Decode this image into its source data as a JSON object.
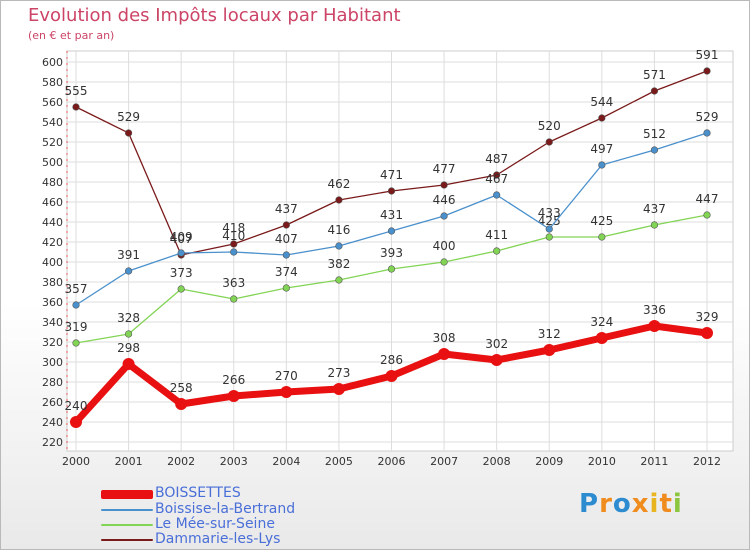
{
  "chart_data": {
    "type": "line",
    "title": "Evolution des Impôts locaux par Habitant",
    "subtitle": "(en € et par an)",
    "categories": [
      "2000",
      "2001",
      "2002",
      "2003",
      "2004",
      "2005",
      "2006",
      "2007",
      "2008",
      "2009",
      "2010",
      "2011",
      "2012"
    ],
    "ylim": [
      220,
      600
    ],
    "ytick_step": 20,
    "grid": true,
    "legend": "bottom-left",
    "series": [
      {
        "name": "BOISSETTES",
        "color": "#e81010",
        "values": [
          240,
          298,
          258,
          266,
          270,
          273,
          286,
          308,
          302,
          312,
          324,
          336,
          329
        ]
      },
      {
        "name": "Boissise-la-Bertrand",
        "color": "#4a90cc",
        "values": [
          357,
          391,
          409,
          410,
          407,
          416,
          431,
          446,
          467,
          433,
          497,
          512,
          529
        ]
      },
      {
        "name": "Le Mée-sur-Seine",
        "color": "#82d454",
        "values": [
          319,
          328,
          373,
          363,
          374,
          382,
          393,
          400,
          411,
          425,
          425,
          437,
          447
        ]
      },
      {
        "name": "Dammarie-les-Lys",
        "color": "#7a1a1a",
        "values": [
          555,
          529,
          407,
          418,
          437,
          462,
          471,
          477,
          487,
          520,
          544,
          571,
          591
        ]
      }
    ]
  },
  "legend_labels": [
    "BOISSETTES",
    "Boissise-la-Bertrand",
    "Le Mée-sur-Seine",
    "Dammarie-les-Lys"
  ],
  "logo": {
    "text": "Proxiti",
    "letters": [
      "P",
      "r",
      "o",
      "x",
      "i",
      "t",
      "i"
    ],
    "colors": [
      "#2d8bd0",
      "#f08c1e",
      "#2d8bd0",
      "#f08c1e",
      "#e8b520",
      "#f08c1e",
      "#8cc63e"
    ]
  }
}
